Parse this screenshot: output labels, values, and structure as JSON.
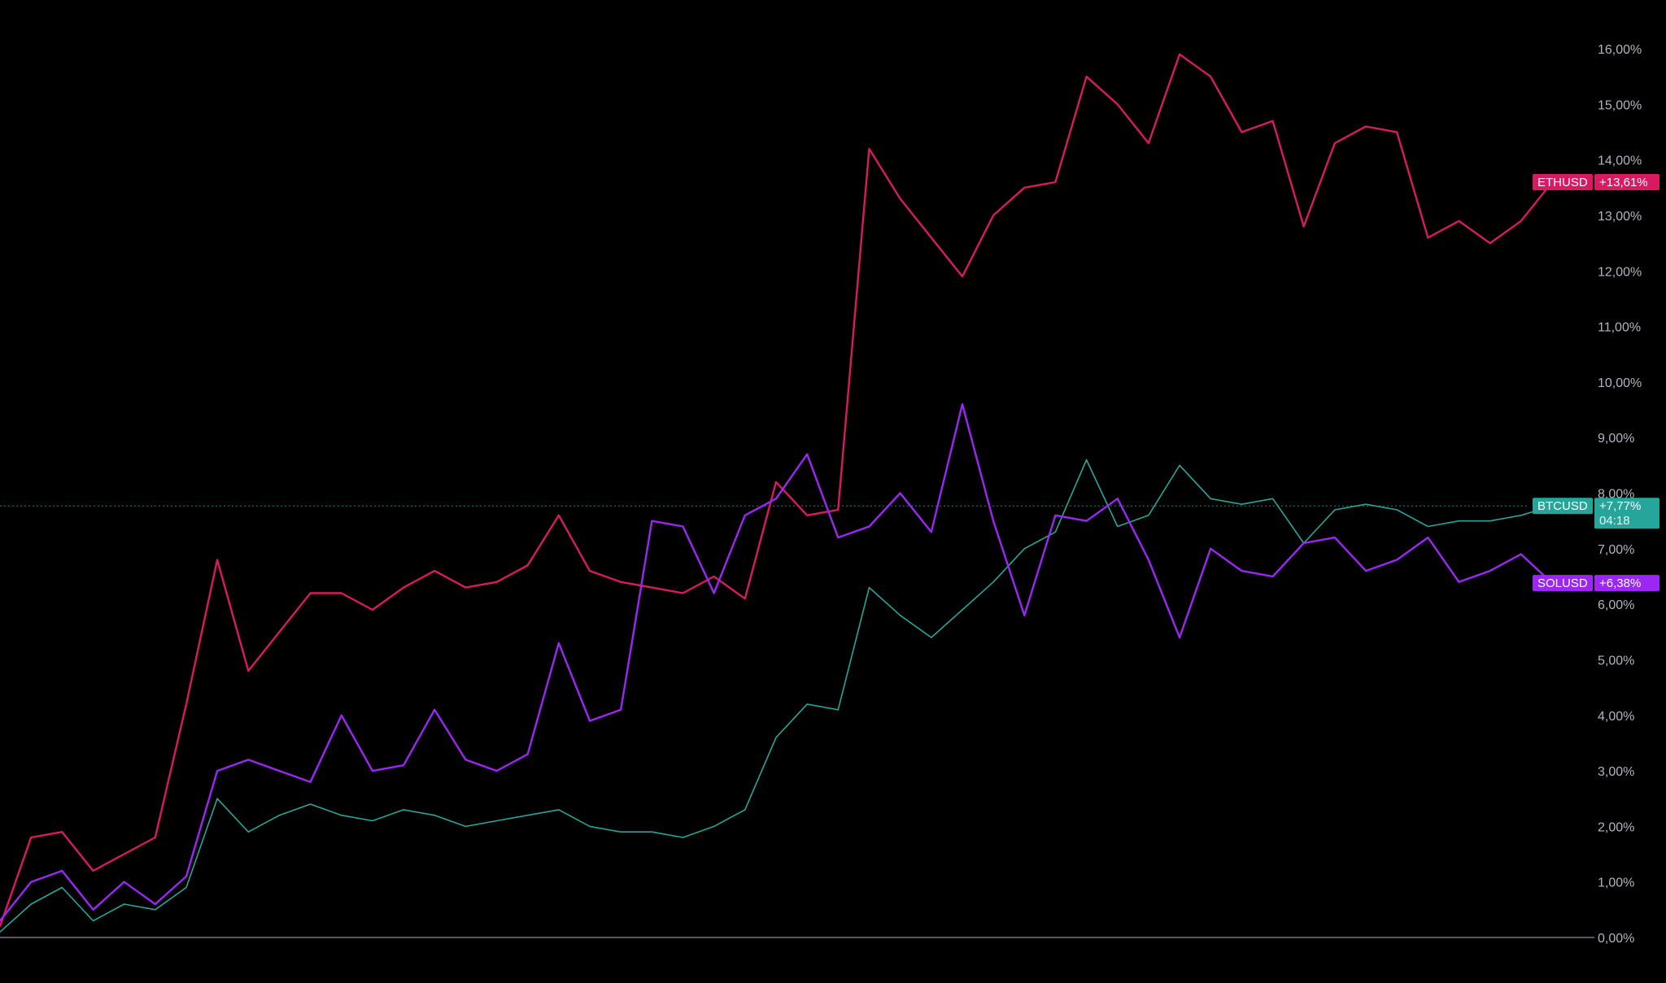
{
  "chart_data": {
    "type": "line",
    "y_unit": "%",
    "ylim": [
      -0.4,
      16.8
    ],
    "y_ticks": [
      "0,00%",
      "1,00%",
      "2,00%",
      "3,00%",
      "4,00%",
      "5,00%",
      "6,00%",
      "7,00%",
      "8,00%",
      "9,00%",
      "10,00%",
      "11,00%",
      "12,00%",
      "13,00%",
      "14,00%",
      "15,00%",
      "16,00%"
    ],
    "x": [
      0,
      20,
      40,
      60,
      80,
      100,
      120,
      140,
      160,
      180,
      200,
      220,
      240,
      260,
      280,
      300,
      320,
      340,
      360,
      380,
      400,
      420,
      440,
      460,
      480,
      500,
      520,
      540,
      560,
      580,
      600,
      620,
      640,
      660,
      680,
      700,
      720,
      740,
      760,
      780,
      800,
      820,
      840,
      860,
      880,
      900,
      920,
      940,
      960,
      980,
      1000
    ],
    "series": [
      {
        "name": "ETHUSD",
        "color": "#d81b60",
        "last_label": "+13,61%",
        "values": [
          0.2,
          1.8,
          1.9,
          1.2,
          1.5,
          1.8,
          4.2,
          6.8,
          4.8,
          5.5,
          6.2,
          6.2,
          5.9,
          6.3,
          6.6,
          6.3,
          6.4,
          6.7,
          7.6,
          6.6,
          6.4,
          6.3,
          6.2,
          6.5,
          6.1,
          8.2,
          7.6,
          7.7,
          14.2,
          13.3,
          12.6,
          11.9,
          13.0,
          13.5,
          13.6,
          15.5,
          15.0,
          14.3,
          15.9,
          15.5,
          14.5,
          14.7,
          12.8,
          14.3,
          14.6,
          14.5,
          12.6,
          12.9,
          12.5,
          12.9,
          13.6
        ]
      },
      {
        "name": "BTCUSD",
        "color": "#26a69a",
        "last_label": "+7,77%",
        "countdown": "04:18",
        "values": [
          0.1,
          0.6,
          0.9,
          0.3,
          0.6,
          0.5,
          0.9,
          2.5,
          1.9,
          2.2,
          2.4,
          2.2,
          2.1,
          2.3,
          2.2,
          2.0,
          2.1,
          2.2,
          2.3,
          2.0,
          1.9,
          1.9,
          1.8,
          2.0,
          2.3,
          3.6,
          4.2,
          4.1,
          6.3,
          5.8,
          5.4,
          5.9,
          6.4,
          7.0,
          7.3,
          8.6,
          7.4,
          7.6,
          8.5,
          7.9,
          7.8,
          7.9,
          7.1,
          7.7,
          7.8,
          7.7,
          7.4,
          7.5,
          7.5,
          7.6,
          7.77
        ]
      },
      {
        "name": "SOLUSD",
        "color": "#9c27f5",
        "last_label": "+6,38%",
        "values": [
          0.3,
          1.0,
          1.2,
          0.5,
          1.0,
          0.6,
          1.1,
          3.0,
          3.2,
          3.0,
          2.8,
          4.0,
          3.0,
          3.1,
          4.1,
          3.2,
          3.0,
          3.3,
          5.3,
          3.9,
          4.1,
          7.5,
          7.4,
          6.2,
          7.6,
          7.9,
          8.7,
          7.2,
          7.4,
          8.0,
          7.3,
          9.6,
          7.5,
          5.8,
          7.6,
          7.5,
          7.9,
          6.8,
          5.4,
          7.0,
          6.6,
          6.5,
          7.1,
          7.2,
          6.6,
          6.8,
          7.2,
          6.4,
          6.6,
          6.9,
          6.38
        ]
      }
    ],
    "reference_line": {
      "value": 7.77,
      "style": "dotted",
      "color": "#26a69a"
    },
    "zero_line": {
      "value": 0,
      "color": "#b2b5be"
    }
  }
}
